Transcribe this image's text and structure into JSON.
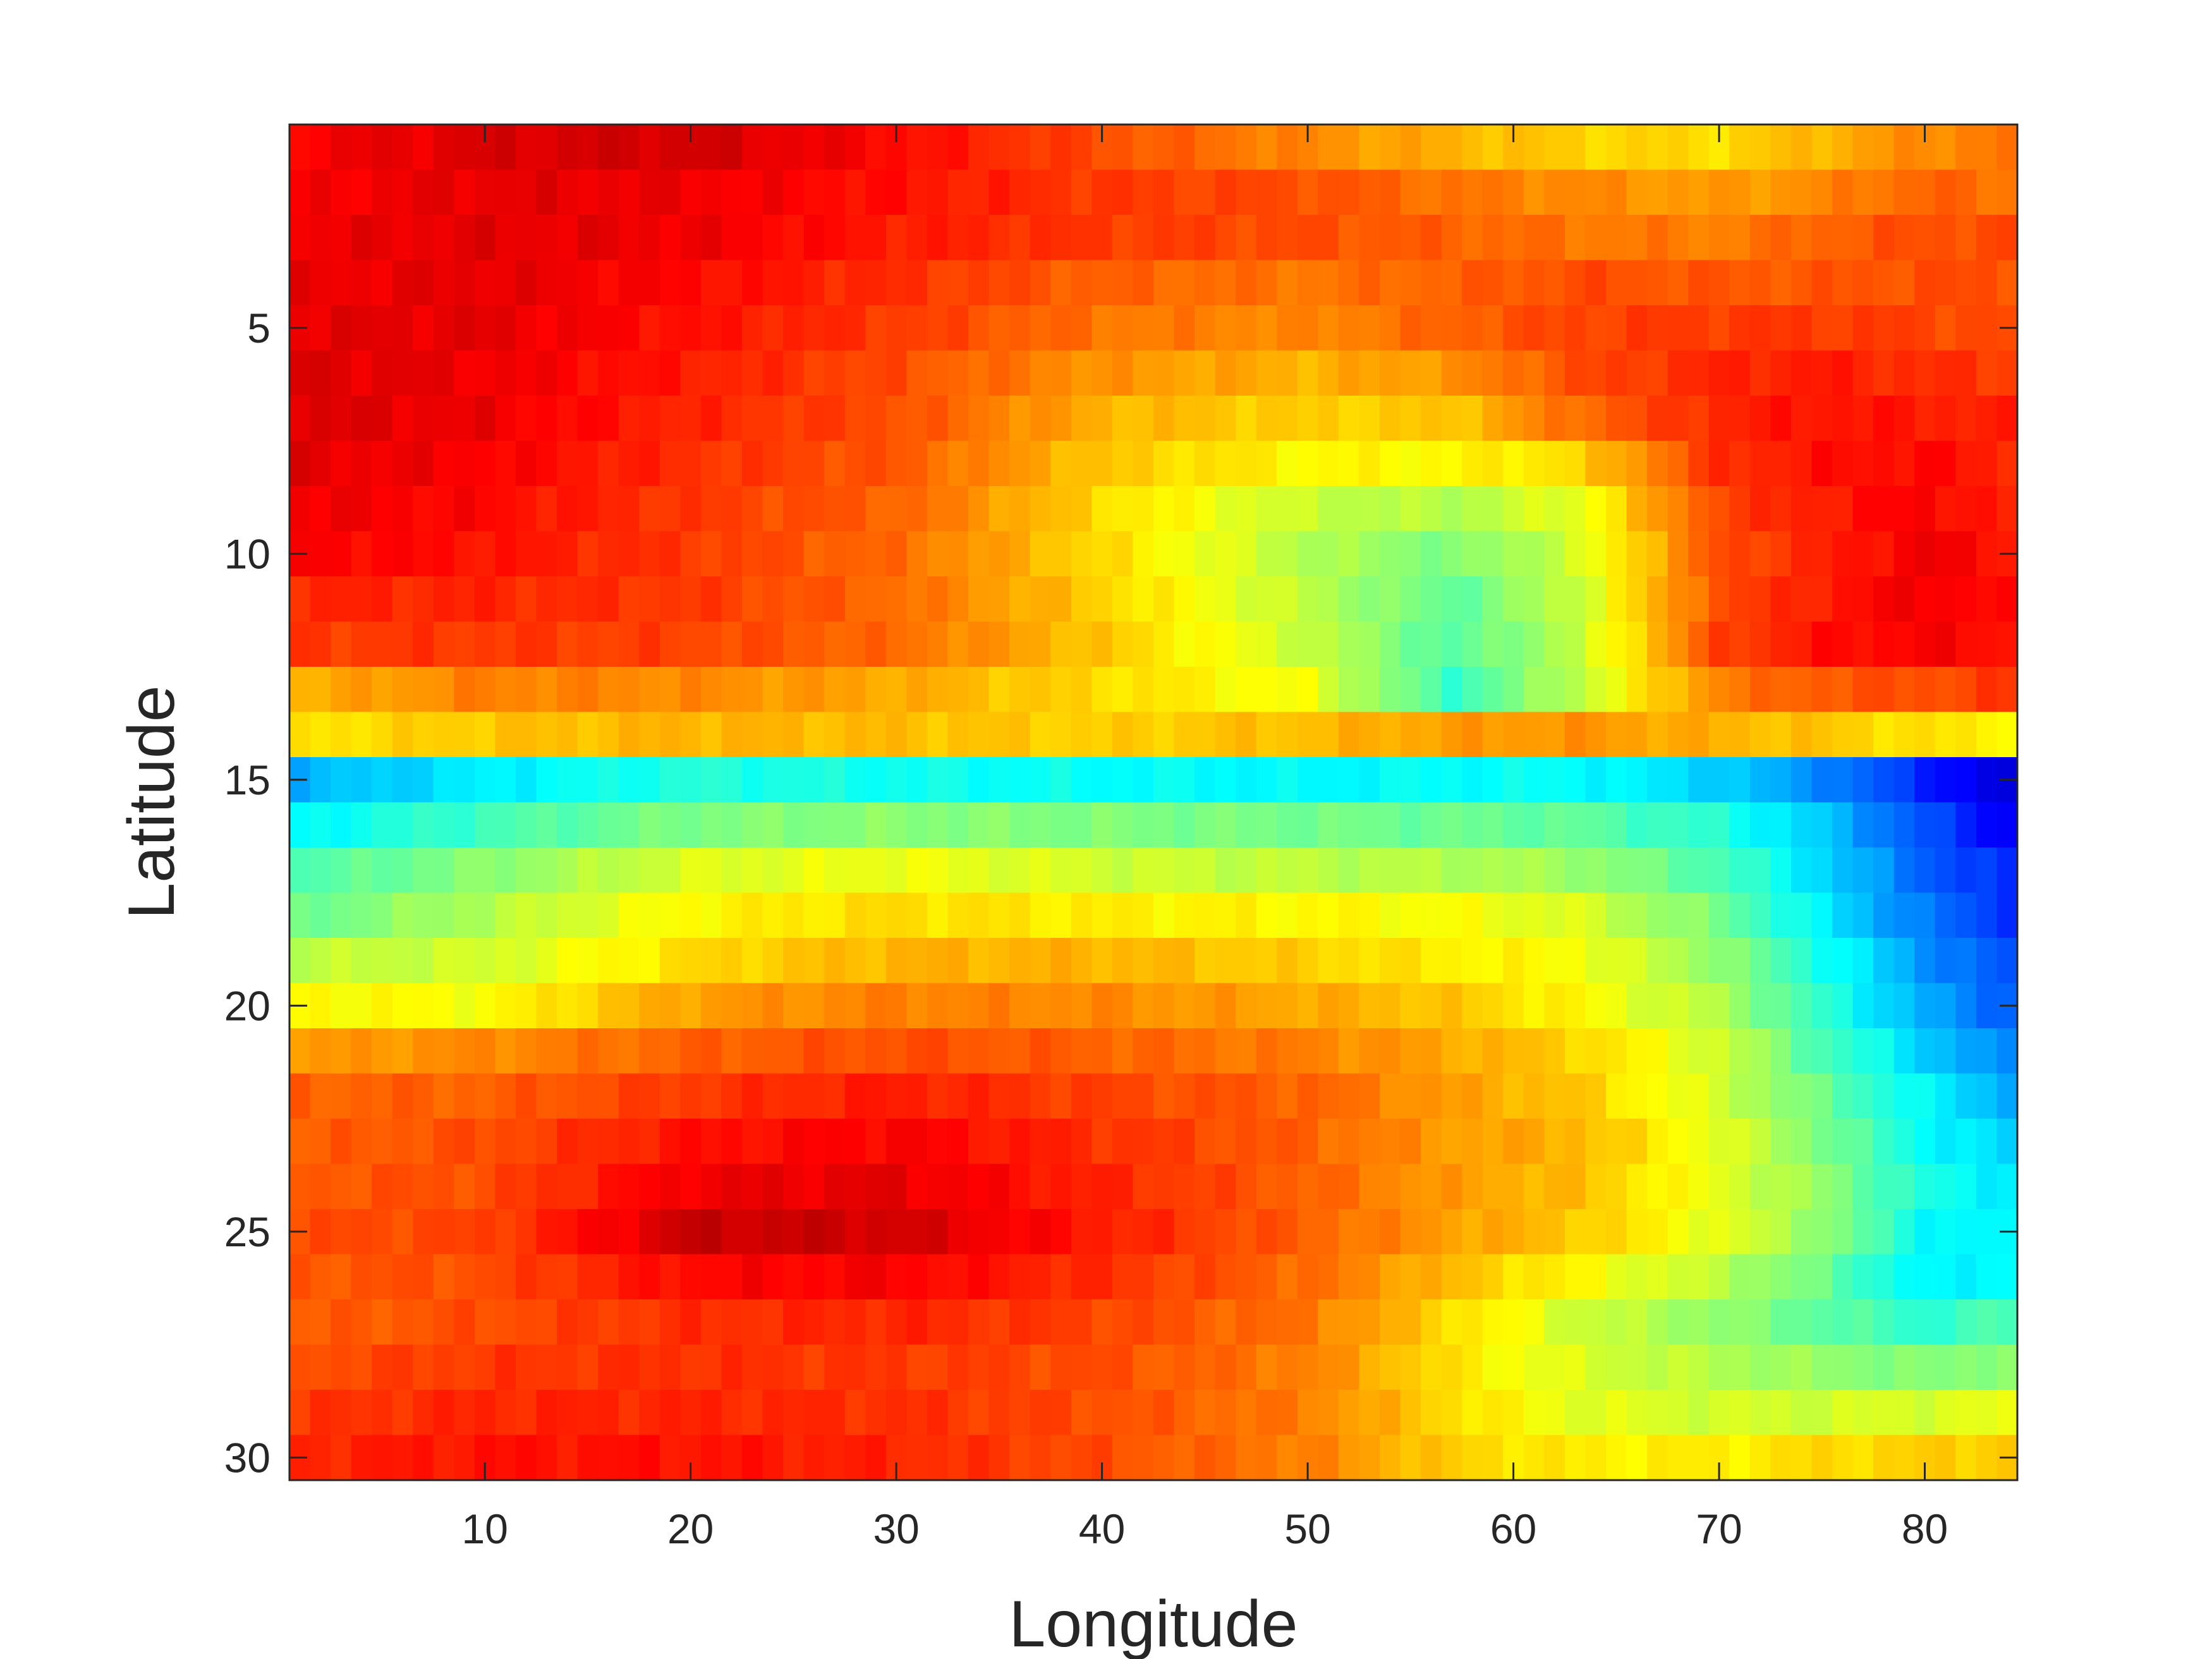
{
  "chart_data": {
    "type": "heatmap",
    "title": "",
    "xlabel": "Longitude",
    "ylabel": "Latitude",
    "x_ticks": [
      10,
      20,
      30,
      40,
      50,
      60,
      70,
      80
    ],
    "y_ticks": [
      5,
      10,
      15,
      20,
      25,
      30
    ],
    "xlim": [
      0.5,
      84.5
    ],
    "ylim": [
      0.5,
      30.5
    ],
    "y_direction": "reversed",
    "colormap": "jet",
    "value_range": [
      0,
      1
    ],
    "columns": 84,
    "rows": 30,
    "grid": false,
    "colorbar": false,
    "row_profiles": [
      {
        "row": 1,
        "cols": [
          1,
          10,
          20,
          30,
          40,
          50,
          57,
          63,
          70,
          75,
          80,
          84
        ],
        "values": [
          0.88,
          0.91,
          0.92,
          0.87,
          0.8,
          0.74,
          0.7,
          0.67,
          0.66,
          0.7,
          0.74,
          0.76
        ]
      },
      {
        "row": 2,
        "cols": [
          1,
          10,
          20,
          30,
          40,
          50,
          57,
          63,
          70,
          75,
          80,
          84
        ],
        "values": [
          0.88,
          0.9,
          0.89,
          0.86,
          0.82,
          0.8,
          0.76,
          0.74,
          0.72,
          0.74,
          0.78,
          0.76
        ]
      },
      {
        "row": 3,
        "cols": [
          1,
          10,
          20,
          30,
          40,
          50,
          57,
          63,
          70,
          75,
          80,
          84
        ],
        "values": [
          0.89,
          0.9,
          0.89,
          0.85,
          0.82,
          0.8,
          0.78,
          0.76,
          0.75,
          0.78,
          0.8,
          0.8
        ]
      },
      {
        "row": 4,
        "cols": [
          1,
          10,
          20,
          30,
          40,
          50,
          57,
          63,
          70,
          75,
          80,
          84
        ],
        "values": [
          0.89,
          0.9,
          0.87,
          0.83,
          0.78,
          0.76,
          0.78,
          0.8,
          0.79,
          0.79,
          0.8,
          0.8
        ]
      },
      {
        "row": 5,
        "cols": [
          1,
          10,
          20,
          30,
          40,
          50,
          57,
          63,
          70,
          75,
          80,
          84
        ],
        "values": [
          0.9,
          0.9,
          0.86,
          0.82,
          0.76,
          0.74,
          0.78,
          0.81,
          0.82,
          0.82,
          0.81,
          0.8
        ]
      },
      {
        "row": 6,
        "cols": [
          1,
          10,
          20,
          30,
          40,
          50,
          57,
          63,
          70,
          75,
          80,
          84
        ],
        "values": [
          0.91,
          0.89,
          0.85,
          0.8,
          0.73,
          0.7,
          0.73,
          0.8,
          0.84,
          0.85,
          0.83,
          0.82
        ]
      },
      {
        "row": 7,
        "cols": [
          1,
          10,
          20,
          30,
          40,
          50,
          57,
          63,
          70,
          75,
          80,
          84
        ],
        "values": [
          0.91,
          0.89,
          0.84,
          0.8,
          0.7,
          0.67,
          0.68,
          0.77,
          0.84,
          0.86,
          0.85,
          0.84
        ]
      },
      {
        "row": 8,
        "cols": [
          1,
          10,
          20,
          30,
          40,
          50,
          57,
          63,
          70,
          75,
          80,
          84
        ],
        "values": [
          0.9,
          0.88,
          0.83,
          0.79,
          0.68,
          0.63,
          0.63,
          0.66,
          0.83,
          0.86,
          0.87,
          0.84
        ]
      },
      {
        "row": 9,
        "cols": [
          1,
          10,
          20,
          30,
          40,
          50,
          57,
          63,
          70,
          75,
          80,
          84
        ],
        "values": [
          0.89,
          0.87,
          0.82,
          0.78,
          0.66,
          0.57,
          0.55,
          0.6,
          0.81,
          0.85,
          0.88,
          0.84
        ]
      },
      {
        "row": 10,
        "cols": [
          1,
          10,
          20,
          30,
          40,
          50,
          57,
          63,
          70,
          75,
          80,
          84
        ],
        "values": [
          0.88,
          0.86,
          0.82,
          0.77,
          0.66,
          0.55,
          0.5,
          0.58,
          0.8,
          0.84,
          0.89,
          0.86
        ]
      },
      {
        "row": 11,
        "cols": [
          1,
          10,
          20,
          30,
          40,
          50,
          57,
          63,
          70,
          75,
          80,
          84
        ],
        "values": [
          0.84,
          0.84,
          0.82,
          0.77,
          0.67,
          0.56,
          0.47,
          0.57,
          0.8,
          0.85,
          0.89,
          0.86
        ]
      },
      {
        "row": 12,
        "cols": [
          1,
          10,
          20,
          30,
          40,
          50,
          57,
          63,
          70,
          75,
          80,
          84
        ],
        "values": [
          0.82,
          0.82,
          0.81,
          0.77,
          0.68,
          0.57,
          0.46,
          0.56,
          0.81,
          0.86,
          0.88,
          0.86
        ]
      },
      {
        "row": 13,
        "cols": [
          1,
          10,
          20,
          30,
          40,
          50,
          57,
          63,
          70,
          75,
          80,
          84
        ],
        "values": [
          0.7,
          0.75,
          0.74,
          0.71,
          0.66,
          0.61,
          0.43,
          0.56,
          0.75,
          0.79,
          0.8,
          0.82
        ]
      },
      {
        "row": 14,
        "cols": [
          1,
          10,
          20,
          30,
          40,
          50,
          57,
          63,
          70,
          75,
          80,
          84
        ],
        "values": [
          0.65,
          0.68,
          0.7,
          0.69,
          0.67,
          0.69,
          0.72,
          0.73,
          0.7,
          0.68,
          0.65,
          0.64
        ]
      },
      {
        "row": 15,
        "cols": [
          1,
          10,
          20,
          30,
          40,
          50,
          57,
          63,
          70,
          75,
          80,
          84
        ],
        "values": [
          0.3,
          0.36,
          0.41,
          0.39,
          0.38,
          0.37,
          0.38,
          0.38,
          0.33,
          0.26,
          0.16,
          0.08
        ]
      },
      {
        "row": 16,
        "cols": [
          1,
          10,
          20,
          30,
          40,
          50,
          57,
          63,
          70,
          75,
          80,
          84
        ],
        "values": [
          0.37,
          0.44,
          0.5,
          0.51,
          0.5,
          0.49,
          0.48,
          0.47,
          0.41,
          0.32,
          0.2,
          0.12
        ]
      },
      {
        "row": 17,
        "cols": [
          1,
          10,
          20,
          30,
          40,
          50,
          57,
          63,
          70,
          75,
          80,
          84
        ],
        "values": [
          0.45,
          0.51,
          0.59,
          0.61,
          0.58,
          0.56,
          0.55,
          0.53,
          0.45,
          0.34,
          0.22,
          0.16
        ]
      },
      {
        "row": 18,
        "cols": [
          1,
          10,
          20,
          30,
          40,
          50,
          57,
          63,
          70,
          75,
          80,
          84
        ],
        "values": [
          0.48,
          0.55,
          0.63,
          0.66,
          0.64,
          0.63,
          0.62,
          0.59,
          0.49,
          0.36,
          0.24,
          0.18
        ]
      },
      {
        "row": 19,
        "cols": [
          1,
          10,
          20,
          30,
          40,
          50,
          57,
          63,
          70,
          75,
          80,
          84
        ],
        "values": [
          0.56,
          0.58,
          0.66,
          0.7,
          0.7,
          0.67,
          0.64,
          0.62,
          0.52,
          0.4,
          0.27,
          0.2
        ]
      },
      {
        "row": 20,
        "cols": [
          1,
          10,
          20,
          30,
          40,
          50,
          57,
          63,
          70,
          75,
          80,
          84
        ],
        "values": [
          0.63,
          0.62,
          0.72,
          0.75,
          0.74,
          0.71,
          0.68,
          0.63,
          0.55,
          0.42,
          0.29,
          0.22
        ]
      },
      {
        "row": 21,
        "cols": [
          1,
          10,
          20,
          30,
          40,
          50,
          57,
          63,
          70,
          75,
          80,
          84
        ],
        "values": [
          0.72,
          0.74,
          0.78,
          0.8,
          0.78,
          0.75,
          0.71,
          0.67,
          0.58,
          0.45,
          0.33,
          0.25
        ]
      },
      {
        "row": 22,
        "cols": [
          1,
          10,
          20,
          30,
          40,
          50,
          57,
          63,
          70,
          75,
          80,
          84
        ],
        "values": [
          0.78,
          0.78,
          0.82,
          0.85,
          0.81,
          0.78,
          0.72,
          0.68,
          0.58,
          0.48,
          0.37,
          0.3
        ]
      },
      {
        "row": 23,
        "cols": [
          1,
          10,
          20,
          30,
          40,
          50,
          57,
          63,
          70,
          75,
          80,
          84
        ],
        "values": [
          0.78,
          0.8,
          0.86,
          0.88,
          0.83,
          0.78,
          0.72,
          0.7,
          0.6,
          0.5,
          0.38,
          0.33
        ]
      },
      {
        "row": 24,
        "cols": [
          1,
          10,
          20,
          30,
          40,
          50,
          57,
          63,
          70,
          75,
          80,
          84
        ],
        "values": [
          0.79,
          0.8,
          0.89,
          0.9,
          0.84,
          0.78,
          0.72,
          0.69,
          0.6,
          0.52,
          0.4,
          0.36
        ]
      },
      {
        "row": 25,
        "cols": [
          1,
          10,
          20,
          30,
          40,
          50,
          57,
          63,
          70,
          75,
          80,
          84
        ],
        "values": [
          0.8,
          0.81,
          0.93,
          0.92,
          0.85,
          0.78,
          0.72,
          0.68,
          0.6,
          0.52,
          0.38,
          0.36
        ]
      },
      {
        "row": 26,
        "cols": [
          1,
          10,
          20,
          30,
          40,
          50,
          57,
          63,
          70,
          75,
          80,
          84
        ],
        "values": [
          0.79,
          0.8,
          0.87,
          0.88,
          0.83,
          0.77,
          0.69,
          0.63,
          0.56,
          0.48,
          0.36,
          0.38
        ]
      },
      {
        "row": 27,
        "cols": [
          1,
          10,
          20,
          30,
          40,
          50,
          57,
          63,
          70,
          75,
          80,
          84
        ],
        "values": [
          0.78,
          0.8,
          0.83,
          0.84,
          0.81,
          0.76,
          0.66,
          0.58,
          0.52,
          0.47,
          0.42,
          0.45
        ]
      },
      {
        "row": 28,
        "cols": [
          1,
          10,
          20,
          30,
          40,
          50,
          57,
          63,
          70,
          75,
          80,
          84
        ],
        "values": [
          0.8,
          0.82,
          0.83,
          0.82,
          0.8,
          0.75,
          0.65,
          0.59,
          0.55,
          0.52,
          0.5,
          0.52
        ]
      },
      {
        "row": 29,
        "cols": [
          1,
          10,
          20,
          30,
          40,
          50,
          57,
          63,
          70,
          75,
          80,
          84
        ],
        "values": [
          0.82,
          0.84,
          0.84,
          0.83,
          0.8,
          0.75,
          0.66,
          0.6,
          0.58,
          0.58,
          0.59,
          0.6
        ]
      },
      {
        "row": 30,
        "cols": [
          1,
          10,
          20,
          30,
          40,
          50,
          57,
          63,
          70,
          75,
          80,
          84
        ],
        "values": [
          0.84,
          0.86,
          0.86,
          0.84,
          0.8,
          0.75,
          0.67,
          0.64,
          0.64,
          0.66,
          0.67,
          0.68
        ]
      }
    ]
  }
}
